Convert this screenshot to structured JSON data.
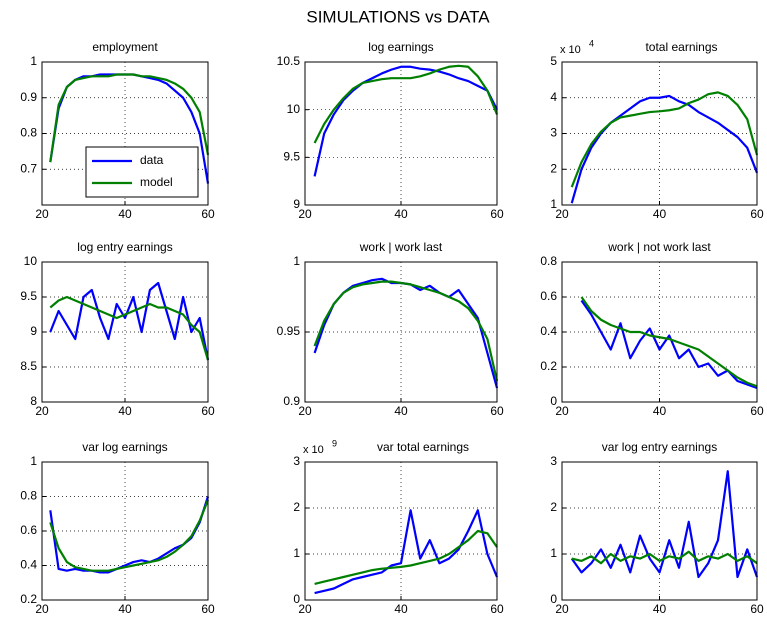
{
  "title": "SIMULATIONS vs DATA",
  "chart_data": [
    {
      "type": "line",
      "title": "employment",
      "x": [
        22,
        24,
        26,
        28,
        30,
        32,
        34,
        36,
        38,
        40,
        42,
        44,
        46,
        48,
        50,
        52,
        54,
        56,
        58,
        60
      ],
      "xlim": [
        20,
        60
      ],
      "xticks": [
        20,
        40,
        60
      ],
      "ylim": [
        0.6,
        1
      ],
      "yticks": [
        0.7,
        0.8,
        0.9,
        1
      ],
      "grid": true,
      "legend": "lower left",
      "series": [
        {
          "name": "data",
          "color": "#0000ff",
          "values": [
            0.72,
            0.87,
            0.93,
            0.95,
            0.96,
            0.96,
            0.965,
            0.965,
            0.965,
            0.965,
            0.965,
            0.96,
            0.955,
            0.95,
            0.94,
            0.92,
            0.9,
            0.86,
            0.8,
            0.66
          ]
        },
        {
          "name": "model",
          "color": "#008000",
          "values": [
            0.72,
            0.88,
            0.93,
            0.95,
            0.955,
            0.96,
            0.96,
            0.96,
            0.965,
            0.965,
            0.965,
            0.96,
            0.96,
            0.955,
            0.95,
            0.94,
            0.925,
            0.9,
            0.86,
            0.74
          ]
        }
      ]
    },
    {
      "type": "line",
      "title": "log earnings",
      "x": [
        22,
        24,
        26,
        28,
        30,
        32,
        34,
        36,
        38,
        40,
        42,
        44,
        46,
        48,
        50,
        52,
        54,
        56,
        58,
        60
      ],
      "xlim": [
        20,
        60
      ],
      "xticks": [
        20,
        40,
        60
      ],
      "ylim": [
        9,
        10.5
      ],
      "yticks": [
        9,
        9.5,
        10,
        10.5
      ],
      "grid": true,
      "series": [
        {
          "color": "#0000ff",
          "values": [
            9.3,
            9.75,
            9.95,
            10.1,
            10.2,
            10.28,
            10.33,
            10.38,
            10.42,
            10.45,
            10.45,
            10.43,
            10.42,
            10.4,
            10.37,
            10.33,
            10.3,
            10.25,
            10.2,
            10.0
          ]
        },
        {
          "color": "#008000",
          "values": [
            9.65,
            9.85,
            10.0,
            10.12,
            10.22,
            10.28,
            10.3,
            10.32,
            10.33,
            10.33,
            10.33,
            10.35,
            10.38,
            10.42,
            10.45,
            10.46,
            10.45,
            10.35,
            10.2,
            9.95
          ]
        }
      ]
    },
    {
      "type": "line",
      "title": "total earnings",
      "scale_label": "x 10",
      "scale_exponent": "4",
      "x": [
        22,
        24,
        26,
        28,
        30,
        32,
        34,
        36,
        38,
        40,
        42,
        44,
        46,
        48,
        50,
        52,
        54,
        56,
        58,
        60
      ],
      "xlim": [
        20,
        60
      ],
      "xticks": [
        20,
        40,
        60
      ],
      "ylim": [
        1,
        5
      ],
      "yticks": [
        1,
        2,
        3,
        4,
        5
      ],
      "grid": true,
      "series": [
        {
          "color": "#0000ff",
          "values": [
            1.05,
            2.0,
            2.6,
            3.0,
            3.3,
            3.5,
            3.7,
            3.9,
            4.0,
            4.0,
            4.05,
            3.9,
            3.8,
            3.6,
            3.45,
            3.3,
            3.1,
            2.9,
            2.6,
            1.9
          ]
        },
        {
          "color": "#008000",
          "values": [
            1.5,
            2.2,
            2.7,
            3.05,
            3.3,
            3.45,
            3.5,
            3.55,
            3.6,
            3.62,
            3.65,
            3.7,
            3.85,
            3.95,
            4.1,
            4.15,
            4.05,
            3.8,
            3.4,
            2.4
          ]
        }
      ]
    },
    {
      "type": "line",
      "title": "log entry earnings",
      "x": [
        22,
        24,
        26,
        28,
        30,
        32,
        34,
        36,
        38,
        40,
        42,
        44,
        46,
        48,
        50,
        52,
        54,
        56,
        58,
        60
      ],
      "xlim": [
        20,
        60
      ],
      "xticks": [
        20,
        40,
        60
      ],
      "ylim": [
        8,
        10
      ],
      "yticks": [
        8,
        8.5,
        9,
        9.5,
        10
      ],
      "grid": true,
      "series": [
        {
          "color": "#0000ff",
          "values": [
            9.0,
            9.3,
            9.1,
            8.9,
            9.5,
            9.6,
            9.2,
            8.9,
            9.4,
            9.2,
            9.5,
            9.0,
            9.6,
            9.7,
            9.3,
            8.9,
            9.5,
            9.0,
            9.2,
            8.6
          ]
        },
        {
          "color": "#008000",
          "values": [
            9.35,
            9.45,
            9.5,
            9.45,
            9.4,
            9.35,
            9.3,
            9.25,
            9.2,
            9.25,
            9.3,
            9.35,
            9.4,
            9.35,
            9.35,
            9.3,
            9.25,
            9.1,
            9.0,
            8.6
          ]
        }
      ]
    },
    {
      "type": "line",
      "title": "work | work last",
      "x": [
        22,
        24,
        26,
        28,
        30,
        32,
        34,
        36,
        38,
        40,
        42,
        44,
        46,
        48,
        50,
        52,
        54,
        56,
        58,
        60
      ],
      "xlim": [
        20,
        60
      ],
      "xticks": [
        20,
        40,
        60
      ],
      "ylim": [
        0.9,
        1
      ],
      "yticks": [
        0.9,
        0.95,
        1
      ],
      "grid": true,
      "series": [
        {
          "color": "#0000ff",
          "values": [
            0.935,
            0.955,
            0.97,
            0.978,
            0.983,
            0.985,
            0.987,
            0.988,
            0.985,
            0.985,
            0.984,
            0.98,
            0.983,
            0.978,
            0.975,
            0.98,
            0.97,
            0.96,
            0.935,
            0.91
          ]
        },
        {
          "color": "#008000",
          "values": [
            0.94,
            0.958,
            0.97,
            0.978,
            0.982,
            0.984,
            0.985,
            0.986,
            0.986,
            0.985,
            0.984,
            0.982,
            0.98,
            0.978,
            0.975,
            0.972,
            0.967,
            0.958,
            0.945,
            0.915
          ]
        }
      ]
    },
    {
      "type": "line",
      "title": "work | not work last",
      "x": [
        22,
        24,
        26,
        28,
        30,
        32,
        34,
        36,
        38,
        40,
        42,
        44,
        46,
        48,
        50,
        52,
        54,
        56,
        58,
        60
      ],
      "xlim": [
        20,
        60
      ],
      "xticks": [
        20,
        40,
        60
      ],
      "ylim": [
        0,
        0.8
      ],
      "yticks": [
        0,
        0.2,
        0.4,
        0.6,
        0.8
      ],
      "grid": true,
      "series": [
        {
          "color": "#0000ff",
          "values": [
            null,
            0.58,
            0.5,
            0.4,
            0.3,
            0.45,
            0.25,
            0.35,
            0.42,
            0.3,
            0.38,
            0.25,
            0.3,
            0.2,
            0.22,
            0.15,
            0.18,
            0.12,
            0.1,
            0.08
          ]
        },
        {
          "color": "#008000",
          "values": [
            null,
            0.6,
            0.52,
            0.47,
            0.44,
            0.42,
            0.4,
            0.4,
            0.38,
            0.37,
            0.36,
            0.34,
            0.32,
            0.3,
            0.26,
            0.22,
            0.18,
            0.14,
            0.11,
            0.09
          ]
        }
      ]
    },
    {
      "type": "line",
      "title": "var log earnings",
      "x": [
        22,
        24,
        26,
        28,
        30,
        32,
        34,
        36,
        38,
        40,
        42,
        44,
        46,
        48,
        50,
        52,
        54,
        56,
        58,
        60
      ],
      "xlim": [
        20,
        60
      ],
      "xticks": [
        20,
        40,
        60
      ],
      "ylim": [
        0.2,
        1
      ],
      "yticks": [
        0.2,
        0.4,
        0.6,
        0.8,
        1
      ],
      "grid": true,
      "series": [
        {
          "color": "#0000ff",
          "values": [
            0.72,
            0.38,
            0.37,
            0.38,
            0.37,
            0.37,
            0.36,
            0.36,
            0.38,
            0.4,
            0.42,
            0.43,
            0.42,
            0.44,
            0.47,
            0.5,
            0.52,
            0.56,
            0.65,
            0.8
          ]
        },
        {
          "color": "#008000",
          "values": [
            0.65,
            0.5,
            0.42,
            0.39,
            0.38,
            0.37,
            0.37,
            0.37,
            0.38,
            0.39,
            0.4,
            0.41,
            0.42,
            0.43,
            0.45,
            0.48,
            0.52,
            0.57,
            0.66,
            0.78
          ]
        }
      ]
    },
    {
      "type": "line",
      "title": "var total earnings",
      "scale_label": "x 10",
      "scale_exponent": "9",
      "x": [
        22,
        24,
        26,
        28,
        30,
        32,
        34,
        36,
        38,
        40,
        42,
        44,
        46,
        48,
        50,
        52,
        54,
        56,
        58,
        60
      ],
      "xlim": [
        20,
        60
      ],
      "xticks": [
        20,
        40,
        60
      ],
      "ylim": [
        0,
        3
      ],
      "yticks": [
        0,
        1,
        2,
        3
      ],
      "grid": true,
      "series": [
        {
          "color": "#0000ff",
          "values": [
            0.15,
            0.2,
            0.25,
            0.35,
            0.45,
            0.5,
            0.55,
            0.6,
            0.75,
            0.8,
            1.95,
            0.9,
            1.3,
            0.8,
            0.9,
            1.1,
            1.5,
            1.95,
            1.0,
            0.5
          ]
        },
        {
          "color": "#008000",
          "values": [
            0.35,
            0.4,
            0.45,
            0.5,
            0.55,
            0.6,
            0.65,
            0.68,
            0.7,
            0.72,
            0.75,
            0.8,
            0.85,
            0.9,
            1.0,
            1.15,
            1.3,
            1.5,
            1.45,
            1.15
          ]
        }
      ]
    },
    {
      "type": "line",
      "title": "var log entry earnings",
      "x": [
        22,
        24,
        26,
        28,
        30,
        32,
        34,
        36,
        38,
        40,
        42,
        44,
        46,
        48,
        50,
        52,
        54,
        56,
        58,
        60
      ],
      "xlim": [
        20,
        60
      ],
      "xticks": [
        20,
        40,
        60
      ],
      "ylim": [
        0,
        3
      ],
      "yticks": [
        0,
        1,
        2,
        3
      ],
      "grid": true,
      "series": [
        {
          "color": "#0000ff",
          "values": [
            0.9,
            0.6,
            0.8,
            1.1,
            0.7,
            1.2,
            0.6,
            1.4,
            0.9,
            0.6,
            1.3,
            0.7,
            1.7,
            0.5,
            0.8,
            1.3,
            2.8,
            0.5,
            1.1,
            0.5
          ]
        },
        {
          "color": "#008000",
          "values": [
            0.9,
            0.85,
            0.95,
            0.8,
            1.0,
            0.85,
            0.95,
            0.9,
            1.0,
            0.85,
            0.95,
            0.9,
            1.05,
            0.85,
            0.95,
            0.9,
            1.0,
            0.85,
            0.95,
            0.8
          ]
        }
      ]
    }
  ]
}
